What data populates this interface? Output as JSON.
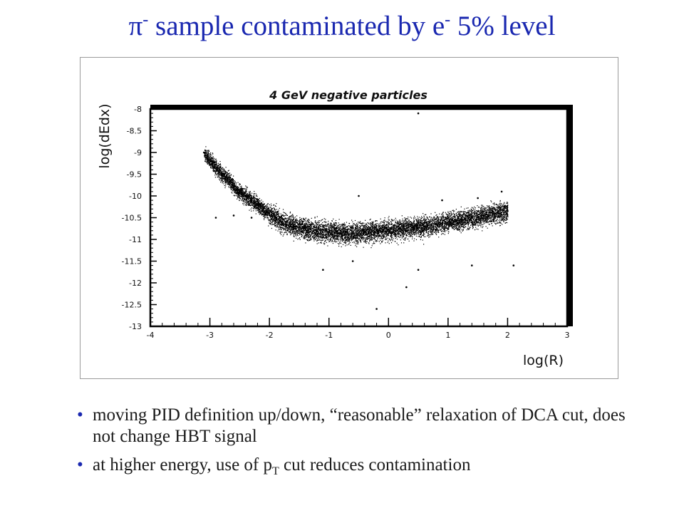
{
  "slide": {
    "title_main": "π",
    "title_sup1": "-",
    "title_mid": " sample contaminated by e",
    "title_sup2": "-",
    "title_glyph": "",
    "title_end": " 5% level",
    "bullet_glyph": "•",
    "bullets": [
      {
        "text": "moving PID definition up/down, “reasonable” relaxation of DCA cut, does not change HBT signal"
      },
      {
        "pre": "at higher energy, use of p",
        "sub": "T",
        "post": " cut reduces contamination"
      }
    ]
  },
  "colors": {
    "title": "#1a28b0",
    "bullet_marker": "#1a28b0",
    "text": "#1a1a1a",
    "points": "#000000"
  },
  "chart_data": {
    "type": "scatter",
    "title": "4 GeV negative particles",
    "xlabel": "log(R)",
    "ylabel": "log(dEdx)",
    "xlim": [
      -4,
      3
    ],
    "ylim": [
      -13,
      -8
    ],
    "x_ticks": [
      "-4",
      "-3",
      "-2",
      "-1",
      "0",
      "1",
      "2",
      "3"
    ],
    "y_ticks": [
      "-8",
      "-8.5",
      "-9",
      "-9.5",
      "-10",
      "-10.5",
      "-11",
      "-11.5",
      "-12",
      "-12.5",
      "-13"
    ],
    "grid": false,
    "legend": "none",
    "series": [
      {
        "points": [
          [
            -3.1,
            -9.0
          ],
          [
            -2.8,
            -9.5
          ],
          [
            -2.7,
            -9.6
          ],
          [
            -2.6,
            -9.8
          ],
          [
            -2.5,
            -9.9
          ],
          [
            -2.4,
            -10.0
          ],
          [
            -2.3,
            -10.1
          ],
          [
            -2.2,
            -10.2
          ],
          [
            -2.1,
            -10.3
          ],
          [
            -2.0,
            -10.4
          ],
          [
            -1.9,
            -10.5
          ],
          [
            -1.8,
            -10.6
          ],
          [
            -1.6,
            -10.7
          ],
          [
            -1.4,
            -10.75
          ],
          [
            -1.2,
            -10.8
          ],
          [
            -1.0,
            -10.82
          ],
          [
            -0.8,
            -10.85
          ],
          [
            -0.6,
            -10.85
          ],
          [
            -0.4,
            -10.83
          ],
          [
            -0.2,
            -10.8
          ],
          [
            0.0,
            -10.78
          ],
          [
            0.2,
            -10.75
          ],
          [
            0.4,
            -10.72
          ],
          [
            0.6,
            -10.7
          ],
          [
            0.8,
            -10.65
          ],
          [
            1.0,
            -10.6
          ],
          [
            1.2,
            -10.55
          ],
          [
            1.4,
            -10.5
          ],
          [
            1.6,
            -10.45
          ],
          [
            1.8,
            -10.4
          ],
          [
            2.0,
            -10.35
          ],
          [
            -2.9,
            -10.5
          ],
          [
            -2.6,
            -10.45
          ],
          [
            -2.3,
            -10.5
          ],
          [
            -0.6,
            -11.5
          ],
          [
            0.5,
            -11.7
          ],
          [
            1.4,
            -11.6
          ],
          [
            2.1,
            -11.6
          ],
          [
            -1.1,
            -11.7
          ],
          [
            0.3,
            -12.1
          ],
          [
            -0.2,
            -12.6
          ],
          [
            0.5,
            -8.1
          ],
          [
            1.9,
            -9.9
          ],
          [
            0.9,
            -10.1
          ],
          [
            -0.5,
            -10.0
          ],
          [
            1.5,
            -10.05
          ]
        ]
      }
    ]
  }
}
